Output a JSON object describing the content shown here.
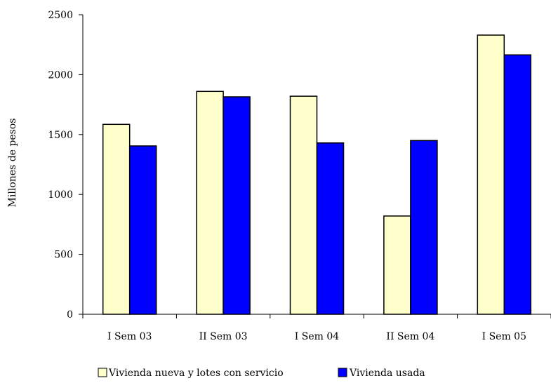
{
  "chart_data": {
    "type": "bar",
    "ylabel": "Millones de pesos",
    "categories": [
      "I Sem 03",
      "II Sem 03",
      "I Sem 04",
      "II Sem 04",
      "I Sem 05"
    ],
    "ylim": [
      0,
      2500
    ],
    "yticks": [
      "0",
      "500",
      "1000",
      "1500",
      "2000",
      "2500"
    ],
    "series": [
      {
        "name": "Vivienda nueva y lotes con servicio",
        "color": "#ffffcc",
        "values": [
          1585,
          1860,
          1820,
          820,
          2330
        ]
      },
      {
        "name": "Vivienda usada",
        "color": "#0000ff",
        "values": [
          1405,
          1815,
          1430,
          1450,
          2165
        ]
      }
    ],
    "grid": false,
    "legend_position": "bottom"
  }
}
